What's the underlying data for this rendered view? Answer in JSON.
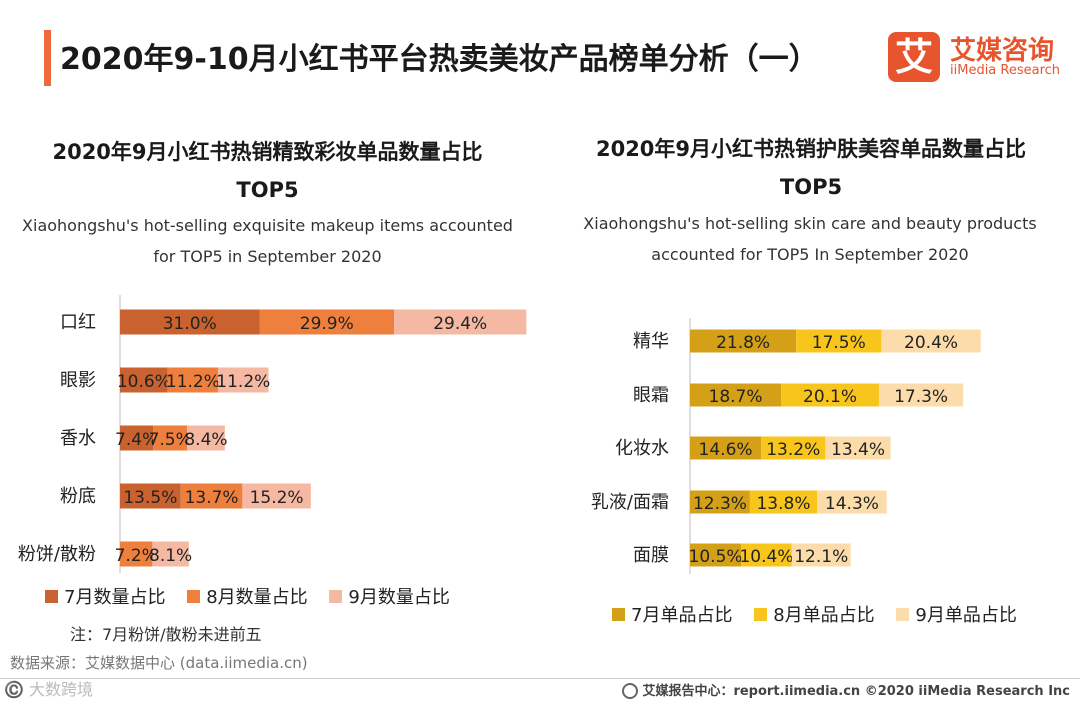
{
  "page": {
    "title": "2020年9-10月小红书平台热卖美妆产品榜单分析（一）",
    "logo_cn": "艾媒咨询",
    "logo_en": "iiMedia Research",
    "logo_mark": "艾",
    "note": "注：7月粉饼/散粉未进前五",
    "source": "数据来源：艾媒数据中心 (data.iimedia.cn)",
    "watermark": "©️ 大数跨境",
    "footer": "艾媒报告中心：report.iimedia.cn  ©2020  iiMedia Research  Inc",
    "colors": {
      "accent": "#ee6b3b",
      "brand": "#e8542d"
    }
  },
  "chart_data": [
    {
      "type": "bar",
      "orientation": "horizontal",
      "stacked": true,
      "title": "2020年9月小红书热销精致彩妆单品数量占比",
      "title_line2": "TOP5",
      "subtitle": "Xiaohongshu's hot-selling exquisite makeup items accounted for TOP5 in September 2020",
      "categories": [
        "口红",
        "眼影",
        "香水",
        "粉底",
        "粉饼/散粉"
      ],
      "series": [
        {
          "name": "7月数量占比",
          "color": "#c9622e",
          "values": [
            31.0,
            10.6,
            7.4,
            13.5,
            0
          ]
        },
        {
          "name": "8月数量占比",
          "color": "#ee7f3c",
          "values": [
            29.9,
            11.2,
            7.5,
            13.7,
            7.2
          ]
        },
        {
          "name": "9月数量占比",
          "color": "#f5b8a3",
          "values": [
            29.4,
            11.2,
            8.4,
            15.2,
            8.1
          ]
        }
      ],
      "labels": [
        [
          "31.0%",
          "29.9%",
          "29.4%"
        ],
        [
          "10.6%",
          "11.2%",
          "11.2%"
        ],
        [
          "7.4%",
          "7.5%",
          "8.4%"
        ],
        [
          "13.5%",
          "13.7%",
          "15.2%"
        ],
        [
          "",
          "7.2%",
          "8.1%"
        ]
      ],
      "legend": "bottom"
    },
    {
      "type": "bar",
      "orientation": "horizontal",
      "stacked": true,
      "title": "2020年9月小红书热销护肤美容单品数量占比",
      "title_line2": "TOP5",
      "subtitle": "Xiaohongshu's hot-selling skin care and beauty products accounted for TOP5 In September 2020",
      "categories": [
        "精华",
        "眼霜",
        "化妆水",
        "乳液/面霜",
        "面膜"
      ],
      "series": [
        {
          "name": "7月单品占比",
          "color": "#d4a017",
          "values": [
            21.8,
            18.7,
            14.6,
            12.3,
            10.5
          ]
        },
        {
          "name": "8月单品占比",
          "color": "#f8c51c",
          "values": [
            17.5,
            20.1,
            13.2,
            13.8,
            10.4
          ]
        },
        {
          "name": "9月单品占比",
          "color": "#fcdcab",
          "values": [
            20.4,
            17.3,
            13.4,
            14.3,
            12.1
          ]
        }
      ],
      "labels": [
        [
          "21.8%",
          "17.5%",
          "20.4%"
        ],
        [
          "18.7%",
          "20.1%",
          "17.3%"
        ],
        [
          "14.6%",
          "13.2%",
          "13.4%"
        ],
        [
          "12.3%",
          "13.8%",
          "14.3%"
        ],
        [
          "10.5%",
          "10.4%",
          "12.1%"
        ]
      ],
      "legend": "bottom"
    }
  ]
}
